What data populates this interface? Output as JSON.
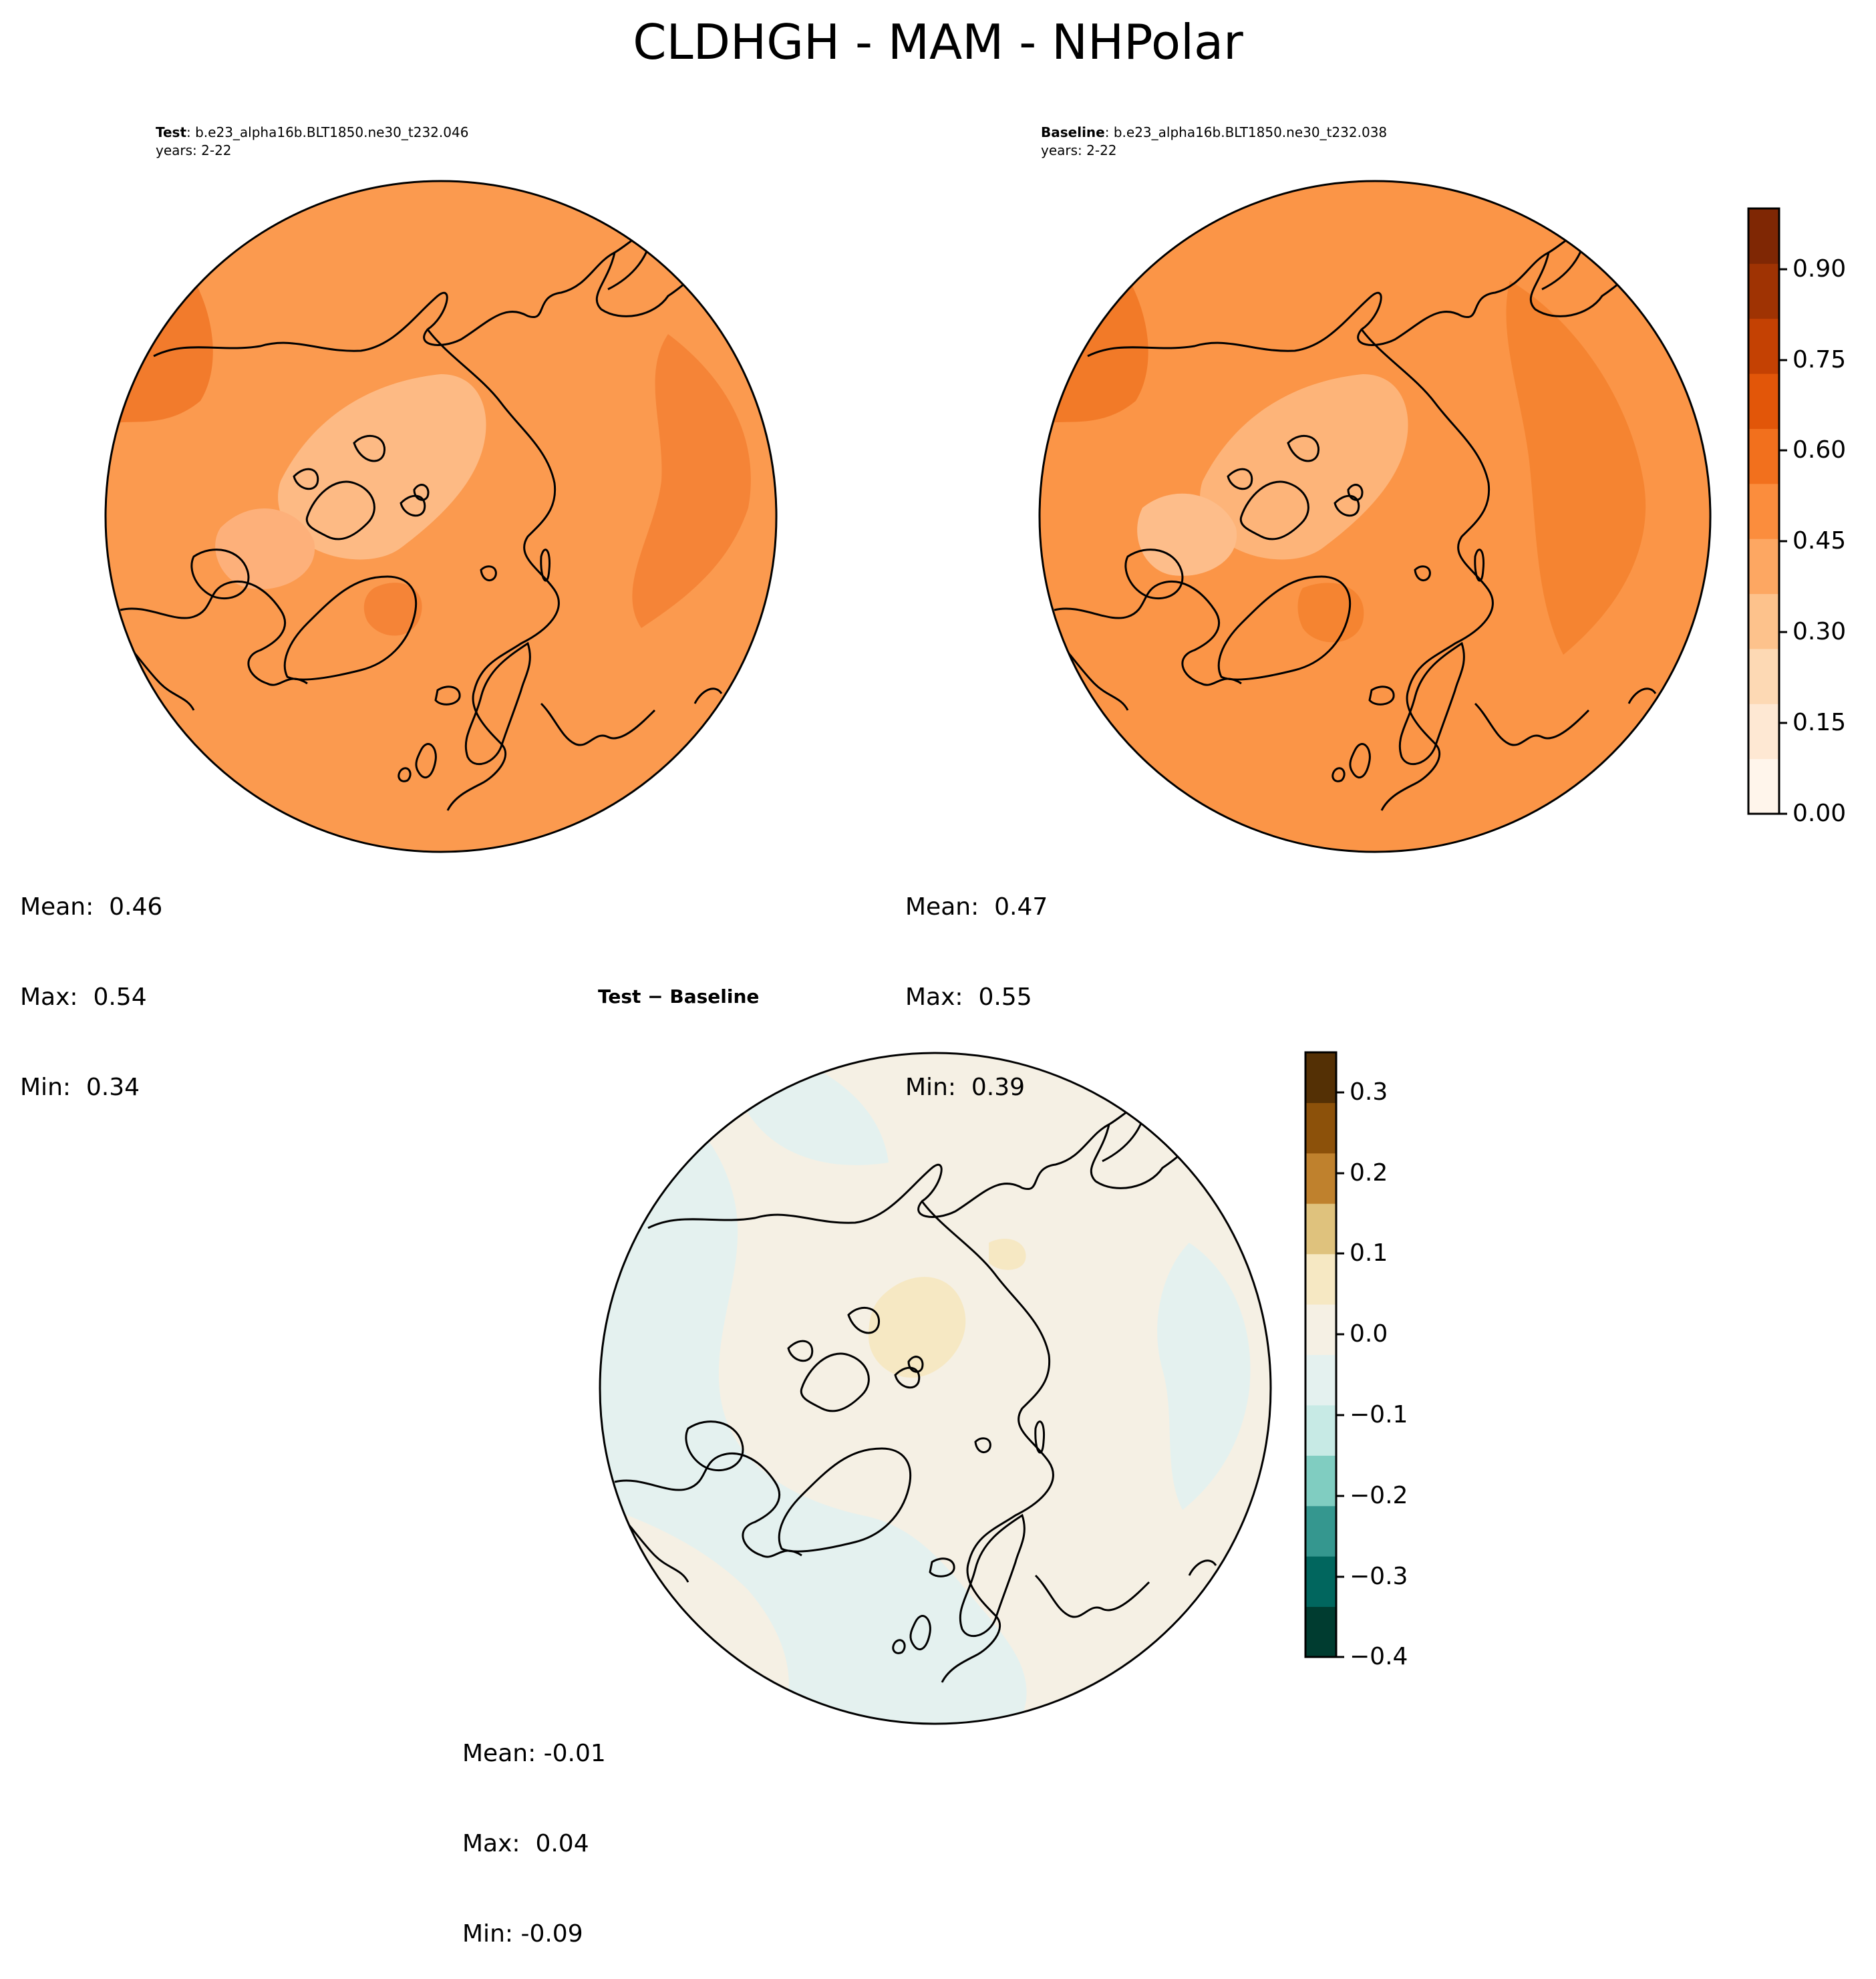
{
  "suptitle": "CLDHGH - MAM - NHPolar",
  "panels": {
    "test": {
      "label": "Test",
      "case": ": b.e23_alpha16b.BLT1850.ne30_t232.046",
      "years": "years: 2-22",
      "stats": {
        "mean": "Mean:  0.46",
        "max": "Max:  0.54",
        "min": "Min:  0.34"
      }
    },
    "baseline": {
      "label": "Baseline",
      "case": ": b.e23_alpha16b.BLT1850.ne30_t232.038",
      "years": "years: 2-22",
      "stats": {
        "mean": "Mean:  0.47",
        "max": "Max:  0.55",
        "min": "Min:  0.39"
      }
    },
    "diff": {
      "title": "Test − Baseline",
      "stats": {
        "mean": "Mean: -0.01",
        "max": "Max:  0.04",
        "min": "Min: -0.09"
      }
    }
  },
  "colorbars": {
    "main": {
      "ticks": [
        "0.00",
        "0.15",
        "0.30",
        "0.45",
        "0.60",
        "0.75",
        "0.90"
      ],
      "colors": [
        "#fff5eb",
        "#fee8d3",
        "#fdd9b4",
        "#fdc28c",
        "#fda762",
        "#fb8d3d",
        "#f2701d",
        "#e25609",
        "#c44103",
        "#9f3303",
        "#7f2704"
      ]
    },
    "diff": {
      "ticks": [
        "0.3",
        "0.2",
        "0.1",
        "0.0",
        "−0.1",
        "−0.2",
        "−0.3",
        "−0.4"
      ],
      "colors": [
        "#003c30",
        "#01665e",
        "#35978f",
        "#80cdc1",
        "#c7eae5",
        "#e4f1ef",
        "#f5f0e4",
        "#f6e8c3",
        "#dfc27d",
        "#bf812d",
        "#8c510a",
        "#543005"
      ]
    }
  },
  "map_colors": {
    "test_base": "#fb9a4f",
    "test_light": "#fdba84",
    "test_dark": "#f27b2c",
    "base_base": "#fb9547",
    "base_light": "#fdb479",
    "base_dark": "#f27a28",
    "diff_tan": "#f5f0e4",
    "diff_teal": "#e4f1ef",
    "diff_yellow": "#f6e8c3"
  }
}
